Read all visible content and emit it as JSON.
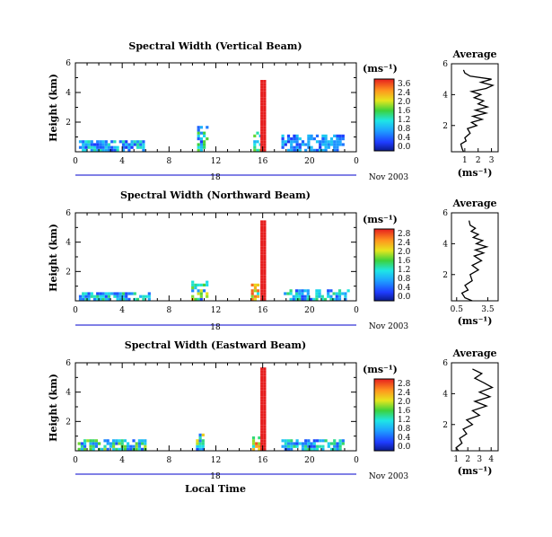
{
  "figure": {
    "x_axis_label": "Local Time",
    "date_label": "Nov 2003",
    "day_label": "18",
    "unit_label": "(ms⁻¹)",
    "avg_unit_label": "(ms⁻¹)",
    "avg_title": "Average"
  },
  "chart_data": [
    {
      "type": "heatmap",
      "title": "Spectral Width (Vertical Beam)",
      "ylabel": "Height (km)",
      "xlabel": "Local Time",
      "x_ticks": [
        "0",
        "4",
        "8",
        "12",
        "16",
        "20",
        "0"
      ],
      "x_ticks_hours": [
        0,
        4,
        8,
        12,
        16,
        20,
        24
      ],
      "y_ticks": [
        "6",
        "4",
        "2"
      ],
      "y_ticks_km": [
        6,
        4,
        2
      ],
      "xlim_hours": [
        0,
        24
      ],
      "ylim_km": [
        0,
        6
      ],
      "colorbar": {
        "label": "(ms⁻¹)",
        "ticks": [
          "3.6",
          "2.4",
          "2.0",
          "1.6",
          "1.2",
          "0.8",
          "0.4",
          "0.0"
        ],
        "range": [
          0,
          4.0
        ]
      },
      "data_segments": [
        {
          "hour_start": 0.3,
          "hour_end": 5.9,
          "height_top_km": 0.8,
          "value_range": [
            0.4,
            2.0
          ]
        },
        {
          "hour_start": 10.4,
          "hour_end": 11.3,
          "height_top_km": 1.8,
          "value_range": [
            0.4,
            2.4
          ]
        },
        {
          "hour_start": 15.2,
          "hour_end": 15.7,
          "height_top_km": 1.5,
          "value_range": [
            1.2,
            2.4
          ]
        },
        {
          "hour_start": 15.8,
          "hour_end": 16.2,
          "height_top_km": 5.0,
          "value_range": [
            4.0,
            4.0
          ]
        },
        {
          "hour_start": 17.6,
          "hour_end": 22.9,
          "height_top_km": 1.2,
          "value_range": [
            0.4,
            1.6
          ]
        }
      ],
      "average_profile": {
        "title": "Average",
        "xlabel": "(ms⁻¹)",
        "x_ticks": [
          "1",
          "2",
          "3"
        ],
        "x_ticks_values": [
          1,
          2,
          3
        ],
        "xlim": [
          0,
          3.5
        ],
        "y_ticks": [
          "6",
          "4",
          "2"
        ],
        "y_ticks_km": [
          6,
          4,
          2
        ],
        "ylim_km": [
          0.3,
          6
        ],
        "height_km": [
          0.3,
          0.5,
          0.8,
          1.0,
          1.2,
          1.5,
          1.8,
          2.0,
          2.2,
          2.4,
          2.6,
          2.8,
          3.0,
          3.2,
          3.4,
          3.6,
          3.8,
          4.0,
          4.2,
          4.4,
          4.6,
          4.8,
          5.0,
          5.2,
          5.4,
          5.6
        ],
        "width": [
          0.9,
          0.8,
          0.7,
          1.1,
          1.0,
          1.4,
          1.2,
          1.9,
          1.5,
          2.3,
          1.6,
          2.6,
          1.8,
          2.7,
          2.0,
          2.4,
          1.7,
          2.2,
          1.5,
          2.6,
          3.1,
          2.2,
          3.0,
          1.4,
          1.0,
          0.9
        ]
      }
    },
    {
      "type": "heatmap",
      "title": "Spectral Width (Northward Beam)",
      "ylabel": "Height (km)",
      "xlabel": "Local Time",
      "x_ticks": [
        "0",
        "4",
        "8",
        "12",
        "16",
        "20",
        "0"
      ],
      "x_ticks_hours": [
        0,
        4,
        8,
        12,
        16,
        20,
        24
      ],
      "y_ticks": [
        "6",
        "4",
        "2"
      ],
      "y_ticks_km": [
        6,
        4,
        2
      ],
      "xlim_hours": [
        0,
        24
      ],
      "ylim_km": [
        0,
        6
      ],
      "colorbar": {
        "label": "(ms⁻¹)",
        "ticks": [
          "2.8",
          "2.4",
          "2.0",
          "1.6",
          "1.2",
          "0.8",
          "0.4",
          "0.0"
        ],
        "range": [
          0,
          3.0
        ]
      },
      "data_segments": [
        {
          "hour_start": 0.3,
          "hour_end": 6.2,
          "height_top_km": 0.7,
          "value_range": [
            0.4,
            1.6
          ]
        },
        {
          "hour_start": 9.9,
          "hour_end": 11.3,
          "height_top_km": 1.5,
          "value_range": [
            0.4,
            2.4
          ]
        },
        {
          "hour_start": 15.0,
          "hour_end": 15.6,
          "height_top_km": 1.2,
          "value_range": [
            1.2,
            2.8
          ]
        },
        {
          "hour_start": 15.8,
          "hour_end": 16.2,
          "height_top_km": 5.5,
          "value_range": [
            3.0,
            3.0
          ]
        },
        {
          "hour_start": 17.8,
          "hour_end": 23.2,
          "height_top_km": 0.8,
          "value_range": [
            0.4,
            1.6
          ]
        }
      ],
      "average_profile": {
        "title": "Average",
        "xlabel": "(ms⁻¹)",
        "x_ticks": [
          "0.5",
          "3.5"
        ],
        "x_ticks_values": [
          0.5,
          3.5
        ],
        "xlim": [
          0,
          4.5
        ],
        "y_ticks": [
          "6",
          "4",
          "2"
        ],
        "y_ticks_km": [
          6,
          4,
          2
        ],
        "ylim_km": [
          0.3,
          6
        ],
        "height_km": [
          0.3,
          0.5,
          0.8,
          1.0,
          1.3,
          1.6,
          2.0,
          2.3,
          2.6,
          2.9,
          3.2,
          3.4,
          3.6,
          3.8,
          4.0,
          4.2,
          4.4,
          4.6,
          4.8,
          5.0,
          5.2,
          5.5
        ],
        "width": [
          2.0,
          1.3,
          1.0,
          1.6,
          1.3,
          2.0,
          1.8,
          2.6,
          2.0,
          2.9,
          2.2,
          3.1,
          2.3,
          3.4,
          2.4,
          3.0,
          2.1,
          2.6,
          1.9,
          2.3,
          1.8,
          1.7
        ]
      }
    },
    {
      "type": "heatmap",
      "title": "Spectral Width (Eastward Beam)",
      "ylabel": "Height (km)",
      "xlabel": "Local Time",
      "x_ticks": [
        "0",
        "4",
        "8",
        "12",
        "16",
        "20",
        "0"
      ],
      "x_ticks_hours": [
        0,
        4,
        8,
        12,
        16,
        20,
        24
      ],
      "y_ticks": [
        "6",
        "4",
        "2"
      ],
      "y_ticks_km": [
        6,
        4,
        2
      ],
      "xlim_hours": [
        0,
        24
      ],
      "ylim_km": [
        0,
        6
      ],
      "colorbar": {
        "label": "(ms⁻¹)",
        "ticks": [
          "2.8",
          "2.4",
          "2.0",
          "1.6",
          "1.2",
          "0.8",
          "0.4",
          "0.0"
        ],
        "range": [
          0,
          3.0
        ]
      },
      "data_segments": [
        {
          "hour_start": 0.2,
          "hour_end": 6.0,
          "height_top_km": 0.9,
          "value_range": [
            0.4,
            2.0
          ]
        },
        {
          "hour_start": 10.3,
          "hour_end": 11.0,
          "height_top_km": 1.2,
          "value_range": [
            0.4,
            2.4
          ]
        },
        {
          "hour_start": 15.1,
          "hour_end": 15.6,
          "height_top_km": 1.0,
          "value_range": [
            1.2,
            2.8
          ]
        },
        {
          "hour_start": 15.8,
          "hour_end": 16.2,
          "height_top_km": 5.7,
          "value_range": [
            3.0,
            3.0
          ]
        },
        {
          "hour_start": 17.6,
          "hour_end": 22.9,
          "height_top_km": 0.9,
          "value_range": [
            0.4,
            1.6
          ]
        }
      ],
      "average_profile": {
        "title": "Average",
        "xlabel": "(ms⁻¹)",
        "x_ticks": [
          "1",
          "2",
          "3",
          "4"
        ],
        "x_ticks_values": [
          1,
          2,
          3,
          4
        ],
        "xlim": [
          0.6,
          4.6
        ],
        "y_ticks": [
          "6",
          "4",
          "2"
        ],
        "y_ticks_km": [
          6,
          4,
          2
        ],
        "ylim_km": [
          0.3,
          6
        ],
        "height_km": [
          0.3,
          0.5,
          0.8,
          1.1,
          1.4,
          1.7,
          2.0,
          2.3,
          2.6,
          2.9,
          3.2,
          3.5,
          3.8,
          4.1,
          4.4,
          4.7,
          5.0,
          5.3,
          5.6
        ],
        "width": [
          1.2,
          1.0,
          1.5,
          1.3,
          1.9,
          1.6,
          2.4,
          1.9,
          3.0,
          2.4,
          3.6,
          2.6,
          3.9,
          3.0,
          4.1,
          3.4,
          2.6,
          3.2,
          2.4
        ]
      }
    }
  ]
}
